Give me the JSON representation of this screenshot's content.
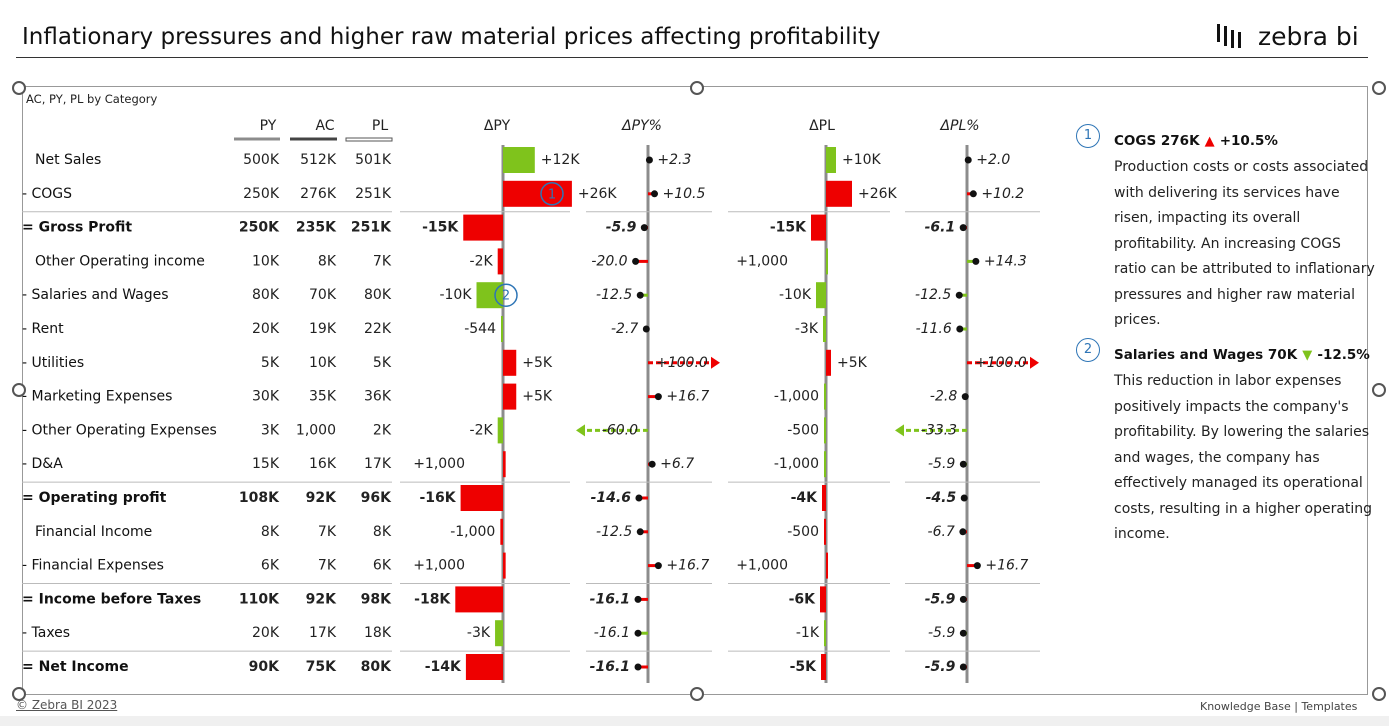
{
  "header": {
    "title": "Inflationary pressures and higher raw material prices affecting profitability",
    "logo_text": "zebra bi"
  },
  "visual_title": "AC, PY, PL by Category",
  "footer": {
    "copyright": "© Zebra BI 2023",
    "links": "Knowledge Base  |  Templates"
  },
  "colors": {
    "positive": "#7fc31c",
    "negative": "#ee0000",
    "axis": "#8c8c8c",
    "comment": "#2e75b6"
  },
  "comments": [
    {
      "number": "1",
      "head": "COGS 276K",
      "arrow": "▲",
      "arrow_color": "#ee0000",
      "delta": "+10.5%",
      "body": "Production costs or costs associated with delivering its services have risen, impacting its overall profitability. An increasing COGS ratio can be attributed to inflationary pressures and higher raw material prices."
    },
    {
      "number": "2",
      "head": "Salaries and Wages 70K",
      "arrow": "▼",
      "arrow_color": "#7fc31c",
      "delta": "-12.5%",
      "body": "This reduction in labor expenses positively impacts the company's profitability. By lowering the salaries and wages, the company has effectively managed its operational costs, resulting in a higher operating income."
    }
  ],
  "chart_data": {
    "type": "table",
    "columns": [
      "PY",
      "AC",
      "PL",
      "ΔPY",
      "ΔPY%",
      "ΔPL",
      "ΔPL%"
    ],
    "rows": [
      {
        "prefix": "",
        "label": "Net Sales",
        "bold": false,
        "py": "500K",
        "ac": "512K",
        "pl": "501K",
        "dpy": 12,
        "dpy_label": "+12K",
        "dpy_good": true,
        "dpyp": 2.3,
        "dpyp_label": "+2.3",
        "dpyp_good": true,
        "dpl": 10,
        "dpl_label": "+10K",
        "dpl_good": true,
        "dplp": 2.0,
        "dplp_label": "+2.0",
        "dplp_good": true
      },
      {
        "prefix": "- ",
        "label": "COGS",
        "bold": false,
        "py": "250K",
        "ac": "276K",
        "pl": "251K",
        "dpy": 26,
        "dpy_label": "+26K",
        "dpy_good": false,
        "dpyp": 10.5,
        "dpyp_label": "+10.5",
        "dpyp_good": false,
        "dpl": 26,
        "dpl_label": "+26K",
        "dpl_good": false,
        "dplp": 10.2,
        "dplp_label": "+10.2",
        "dplp_good": false,
        "marker": "1"
      },
      {
        "prefix": "= ",
        "label": "Gross Profit",
        "bold": true,
        "py": "250K",
        "ac": "235K",
        "pl": "251K",
        "dpy": -15,
        "dpy_label": "-15K",
        "dpy_good": false,
        "dpyp": -5.9,
        "dpyp_label": "-5.9",
        "dpyp_good": false,
        "dpl": -15,
        "dpl_label": "-15K",
        "dpl_good": false,
        "dplp": -6.1,
        "dplp_label": "-6.1",
        "dplp_good": false
      },
      {
        "prefix": "",
        "label": "Other Operating income",
        "bold": false,
        "py": "10K",
        "ac": "8K",
        "pl": "7K",
        "dpy": -2,
        "dpy_label": "-2K",
        "dpy_good": false,
        "dpyp": -20.0,
        "dpyp_label": "-20.0",
        "dpyp_good": false,
        "dpl": 1,
        "dpl_label": "+1,000",
        "dpl_good": true,
        "dplp": 14.3,
        "dplp_label": "+14.3",
        "dplp_good": true
      },
      {
        "prefix": "- ",
        "label": "Salaries and Wages",
        "bold": false,
        "py": "80K",
        "ac": "70K",
        "pl": "80K",
        "dpy": -10,
        "dpy_label": "-10K",
        "dpy_good": true,
        "dpyp": -12.5,
        "dpyp_label": "-12.5",
        "dpyp_good": true,
        "dpl": -10,
        "dpl_label": "-10K",
        "dpl_good": true,
        "dplp": -12.5,
        "dplp_label": "-12.5",
        "dplp_good": true,
        "marker": "2"
      },
      {
        "prefix": "- ",
        "label": "Rent",
        "bold": false,
        "py": "20K",
        "ac": "19K",
        "pl": "22K",
        "dpy": -0.544,
        "dpy_label": "-544",
        "dpy_good": true,
        "dpyp": -2.7,
        "dpyp_label": "-2.7",
        "dpyp_good": true,
        "dpl": -3,
        "dpl_label": "-3K",
        "dpl_good": true,
        "dplp": -11.6,
        "dplp_label": "-11.6",
        "dplp_good": true
      },
      {
        "prefix": "- ",
        "label": "Utilities",
        "bold": false,
        "py": "5K",
        "ac": "10K",
        "pl": "5K",
        "dpy": 5,
        "dpy_label": "+5K",
        "dpy_good": false,
        "dpyp": 100.0,
        "dpyp_label": "+100.0",
        "dpyp_good": false,
        "dpyp_clip": true,
        "dpl": 5,
        "dpl_label": "+5K",
        "dpl_good": false,
        "dplp": 100.0,
        "dplp_label": "+100.0",
        "dplp_good": false,
        "dplp_clip": true
      },
      {
        "prefix": "- ",
        "label": "Marketing Expenses",
        "bold": false,
        "py": "30K",
        "ac": "35K",
        "pl": "36K",
        "dpy": 5,
        "dpy_label": "+5K",
        "dpy_good": false,
        "dpyp": 16.7,
        "dpyp_label": "+16.7",
        "dpyp_good": false,
        "dpl": -1,
        "dpl_label": "-1,000",
        "dpl_good": true,
        "dplp": -2.8,
        "dplp_label": "-2.8",
        "dplp_good": true
      },
      {
        "prefix": "- ",
        "label": "Other Operating Expenses",
        "bold": false,
        "py": "3K",
        "ac": "1,000",
        "pl": "2K",
        "dpy": -2,
        "dpy_label": "-2K",
        "dpy_good": true,
        "dpyp": -60.0,
        "dpyp_label": "-60.0",
        "dpyp_good": true,
        "dpyp_clip": true,
        "dpl": -0.5,
        "dpl_label": "-500",
        "dpl_good": true,
        "dplp": -33.3,
        "dplp_label": "-33.3",
        "dplp_good": true,
        "dplp_clip": true
      },
      {
        "prefix": "- ",
        "label": "D&A",
        "bold": false,
        "py": "15K",
        "ac": "16K",
        "pl": "17K",
        "dpy": 1,
        "dpy_label": "+1,000",
        "dpy_good": false,
        "dpyp": 6.7,
        "dpyp_label": "+6.7",
        "dpyp_good": false,
        "dpl": -1,
        "dpl_label": "-1,000",
        "dpl_good": true,
        "dplp": -5.9,
        "dplp_label": "-5.9",
        "dplp_good": true
      },
      {
        "prefix": "= ",
        "label": "Operating profit",
        "bold": true,
        "py": "108K",
        "ac": "92K",
        "pl": "96K",
        "dpy": -16,
        "dpy_label": "-16K",
        "dpy_good": false,
        "dpyp": -14.6,
        "dpyp_label": "-14.6",
        "dpyp_good": false,
        "dpl": -4,
        "dpl_label": "-4K",
        "dpl_good": false,
        "dplp": -4.5,
        "dplp_label": "-4.5",
        "dplp_good": false
      },
      {
        "prefix": "",
        "label": "Financial Income",
        "bold": false,
        "py": "8K",
        "ac": "7K",
        "pl": "8K",
        "dpy": -1,
        "dpy_label": "-1,000",
        "dpy_good": false,
        "dpyp": -12.5,
        "dpyp_label": "-12.5",
        "dpyp_good": false,
        "dpl": -0.5,
        "dpl_label": "-500",
        "dpl_good": false,
        "dplp": -6.7,
        "dplp_label": "-6.7",
        "dplp_good": false
      },
      {
        "prefix": "- ",
        "label": "Financial Expenses",
        "bold": false,
        "py": "6K",
        "ac": "7K",
        "pl": "6K",
        "dpy": 1,
        "dpy_label": "+1,000",
        "dpy_good": false,
        "dpyp": 16.7,
        "dpyp_label": "+16.7",
        "dpyp_good": false,
        "dpl": 1,
        "dpl_label": "+1,000",
        "dpl_good": false,
        "dplp": 16.7,
        "dplp_label": "+16.7",
        "dplp_good": false
      },
      {
        "prefix": "= ",
        "label": "Income before Taxes",
        "bold": true,
        "py": "110K",
        "ac": "92K",
        "pl": "98K",
        "dpy": -18,
        "dpy_label": "-18K",
        "dpy_good": false,
        "dpyp": -16.1,
        "dpyp_label": "-16.1",
        "dpyp_good": false,
        "dpl": -6,
        "dpl_label": "-6K",
        "dpl_good": false,
        "dplp": -5.9,
        "dplp_label": "-5.9",
        "dplp_good": false
      },
      {
        "prefix": "- ",
        "label": "Taxes",
        "bold": false,
        "py": "20K",
        "ac": "17K",
        "pl": "18K",
        "dpy": -3,
        "dpy_label": "-3K",
        "dpy_good": true,
        "dpyp": -16.1,
        "dpyp_label": "-16.1",
        "dpyp_good": true,
        "dpl": -1,
        "dpl_label": "-1K",
        "dpl_good": true,
        "dplp": -5.9,
        "dplp_label": "-5.9",
        "dplp_good": true
      },
      {
        "prefix": "= ",
        "label": "Net Income",
        "bold": true,
        "py": "90K",
        "ac": "75K",
        "pl": "80K",
        "dpy": -14,
        "dpy_label": "-14K",
        "dpy_good": false,
        "dpyp": -16.1,
        "dpyp_label": "-16.1",
        "dpyp_good": false,
        "dpl": -5,
        "dpl_label": "-5K",
        "dpl_good": false,
        "dplp": -5.9,
        "dplp_label": "-5.9",
        "dplp_good": false
      }
    ]
  }
}
